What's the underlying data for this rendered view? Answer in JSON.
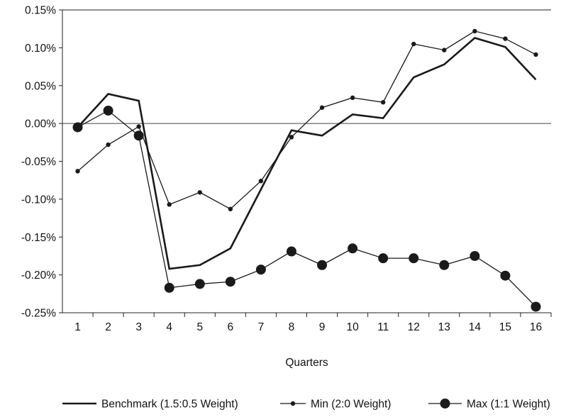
{
  "chart_data": {
    "type": "line",
    "xlabel": "Quarters",
    "ylabel": "",
    "ylim": [
      -0.25,
      0.15
    ],
    "y_ticks": [
      "0.15%",
      "0.10%",
      "0.05%",
      "0.00%",
      "-0.05%",
      "-0.10%",
      "-0.15%",
      "-0.20%",
      "-0.25%"
    ],
    "categories": [
      "1",
      "2",
      "3",
      "4",
      "5",
      "6",
      "7",
      "8",
      "9",
      "10",
      "11",
      "12",
      "13",
      "14",
      "15",
      "16"
    ],
    "grid": false,
    "zero_line": true,
    "legend_position": "bottom",
    "series": [
      {
        "name": "Benchmark (1.5:0.5 Weight)",
        "style": "thick-line",
        "color": "#1a1a1a",
        "values": [
          -0.005,
          0.039,
          0.03,
          -0.192,
          -0.187,
          -0.165,
          -0.087,
          -0.009,
          -0.016,
          0.012,
          0.007,
          0.061,
          0.078,
          0.113,
          0.101,
          0.058
        ]
      },
      {
        "name": "Min (2:0 Weight)",
        "style": "line-small-dot",
        "color": "#1a1a1a",
        "values": [
          -0.063,
          -0.028,
          -0.004,
          -0.107,
          -0.091,
          -0.113,
          -0.076,
          -0.018,
          0.021,
          0.034,
          0.028,
          0.105,
          0.097,
          0.122,
          0.112,
          0.091
        ]
      },
      {
        "name": "Max (1:1 Weight)",
        "style": "line-large-dot",
        "color": "#1a1a1a",
        "values": [
          -0.005,
          0.017,
          -0.016,
          -0.217,
          -0.212,
          -0.209,
          -0.193,
          -0.169,
          -0.187,
          -0.165,
          -0.178,
          -0.178,
          -0.187,
          -0.175,
          -0.201,
          -0.242
        ]
      }
    ]
  }
}
